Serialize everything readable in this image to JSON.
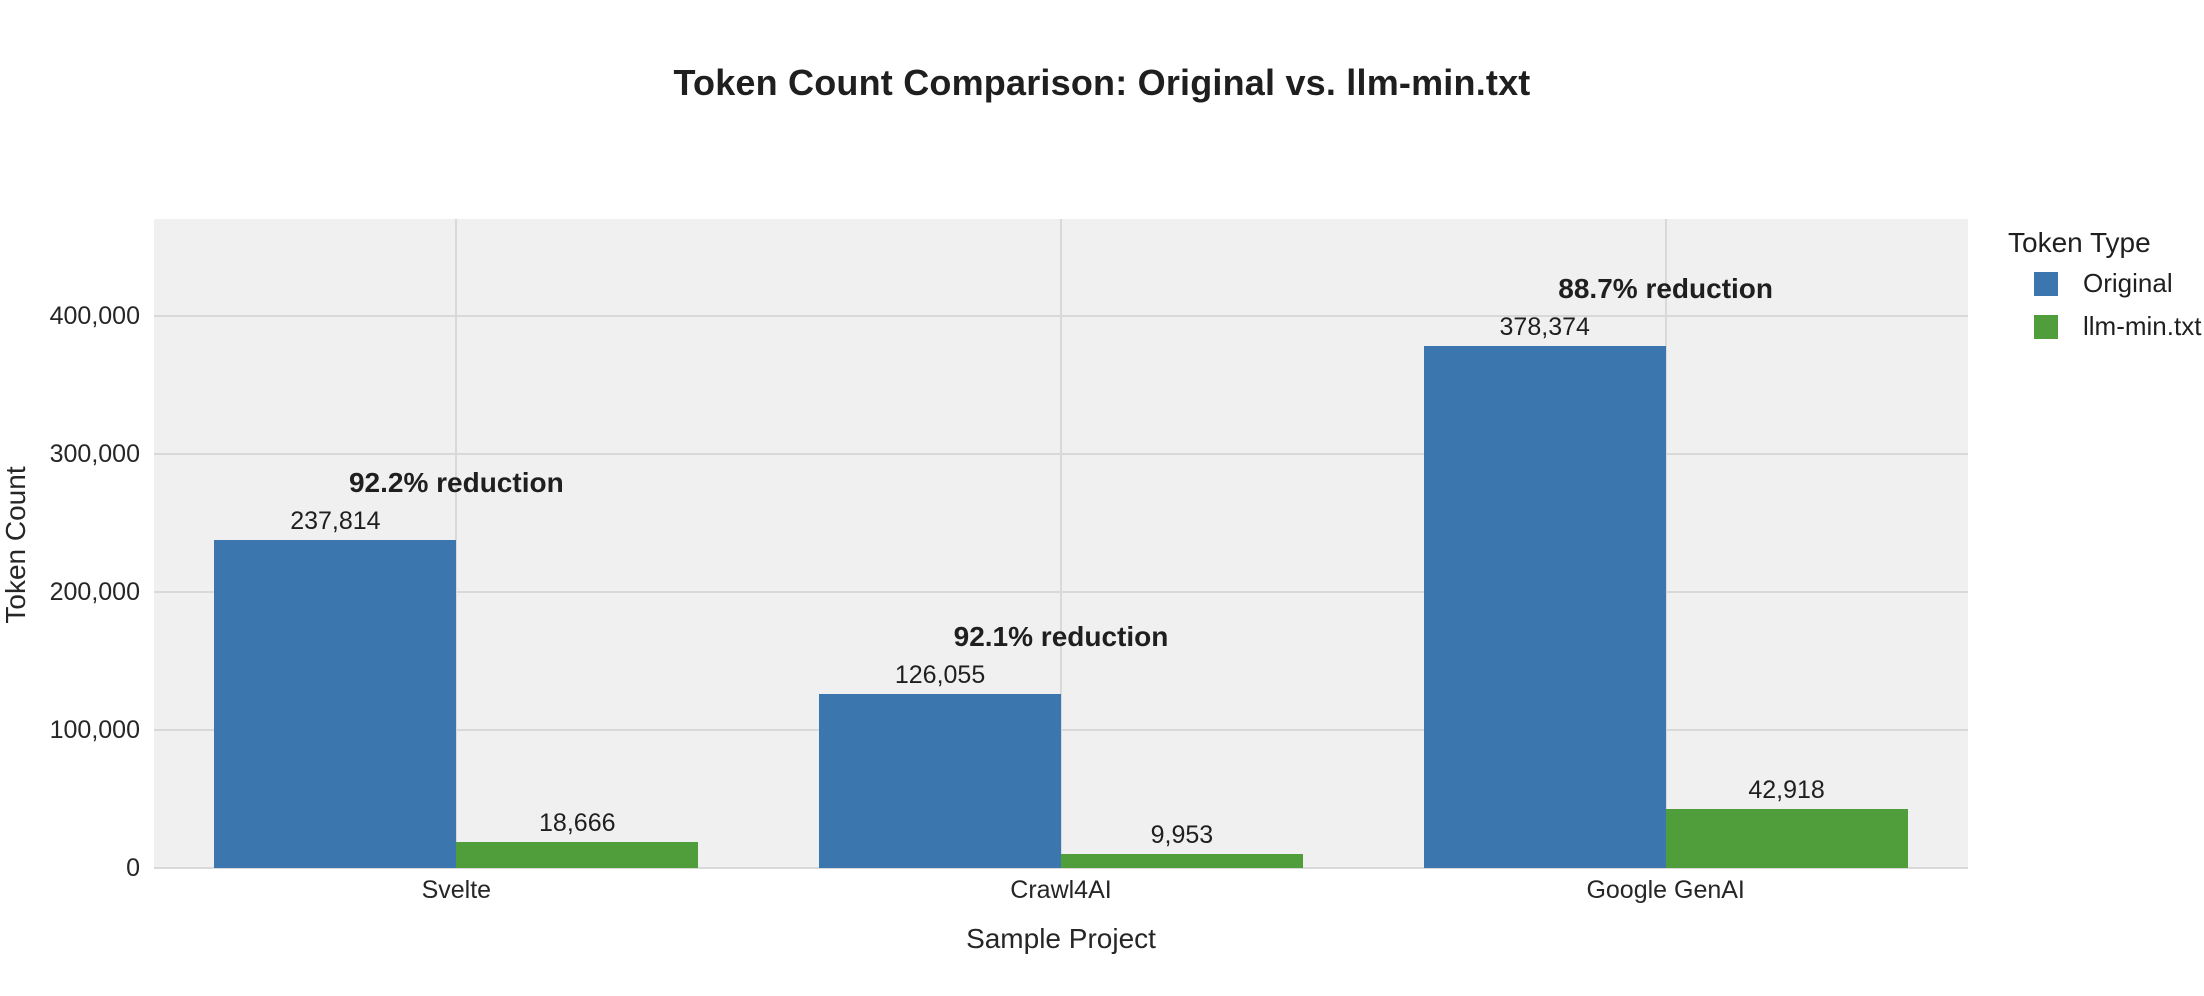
{
  "chart_data": {
    "type": "bar",
    "title": "Token Count Comparison: Original vs. llm-min.txt",
    "xlabel": "Sample Project",
    "ylabel": "Token Count",
    "categories": [
      "Svelte",
      "Crawl4AI",
      "Google GenAI"
    ],
    "series": [
      {
        "name": "Original",
        "color": "#3b76af",
        "values": [
          237814,
          126055,
          378374
        ],
        "value_labels": [
          "237,814",
          "126,055",
          "378,374"
        ]
      },
      {
        "name": "llm-min.txt",
        "color": "#4f9d3b",
        "values": [
          18666,
          9953,
          42918
        ],
        "value_labels": [
          "18,666",
          "9,953",
          "42,918"
        ]
      }
    ],
    "annotations": [
      "92.2% reduction",
      "92.1% reduction",
      "88.7% reduction"
    ],
    "ylim": [
      0,
      470000
    ],
    "y_ticks": [
      {
        "value": 0,
        "label": "0"
      },
      {
        "value": 100000,
        "label": "100,000"
      },
      {
        "value": 200000,
        "label": "200,000"
      },
      {
        "value": 300000,
        "label": "300,000"
      },
      {
        "value": 400000,
        "label": "400,000"
      }
    ],
    "legend": {
      "title": "Token Type",
      "position": "right-top"
    },
    "grid": true,
    "plot_bg": "#f0f0f0",
    "grid_color": "#d9d9d9",
    "text_color": "#262626",
    "figure_bg": "#ffffff"
  }
}
